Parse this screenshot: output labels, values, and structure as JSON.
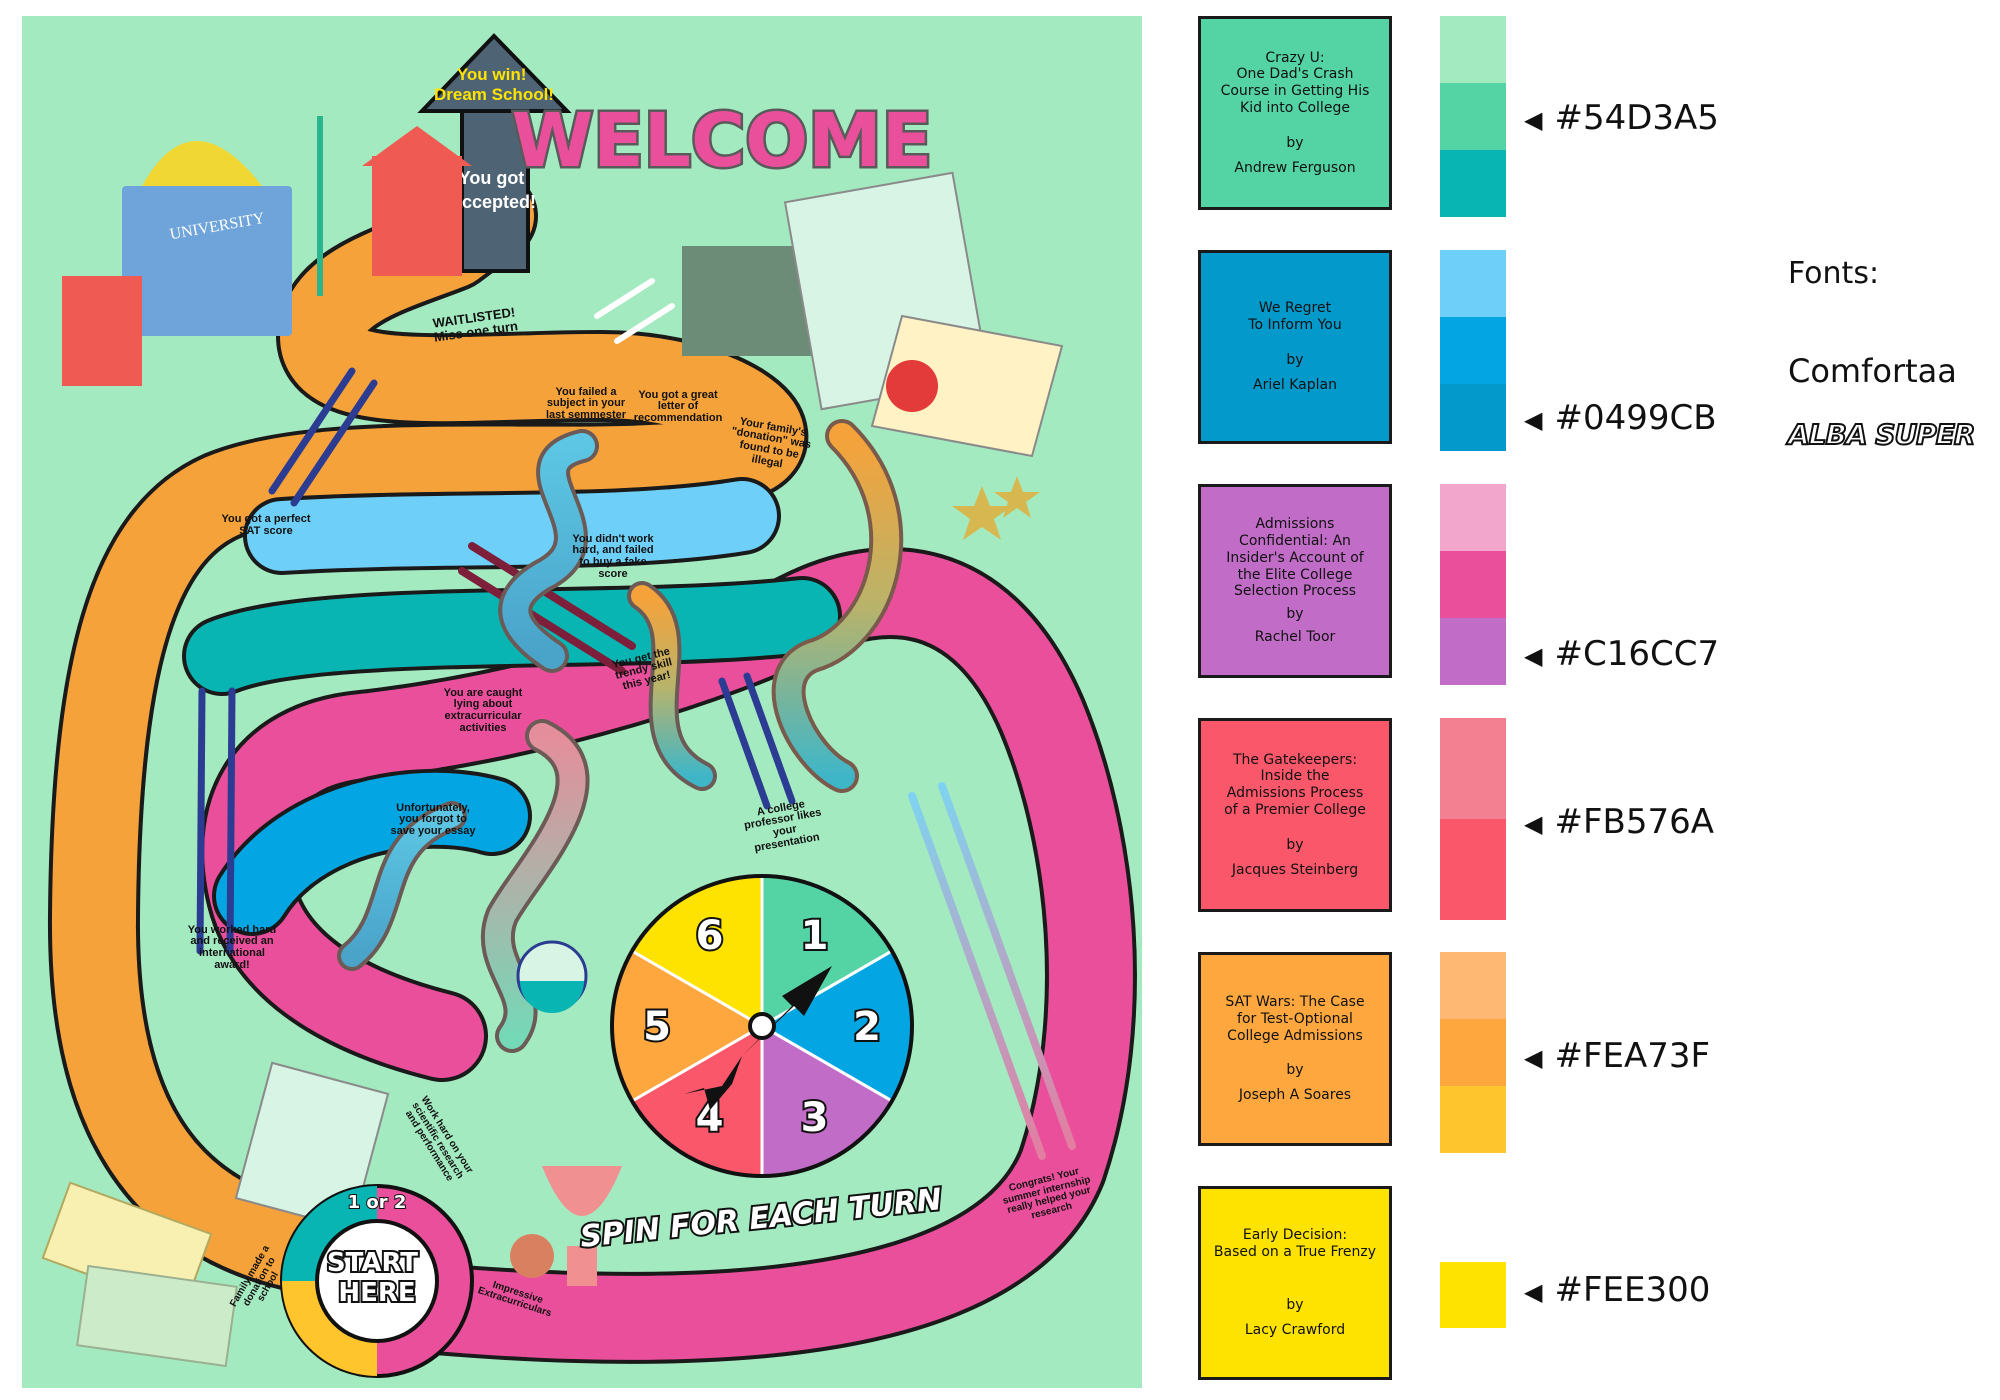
{
  "board": {
    "background": "#A3EAC0",
    "welcome": "WELCOME",
    "university_label": "UNIVERSITY",
    "goal_win": "You win!\nDream School!",
    "goal_accepted": "You got\naccepted!",
    "start_label": "START\nHERE",
    "start_ring": "1 or 2",
    "spin_label": "SPIN FOR EACH TURN",
    "spinner_numbers": [
      "1",
      "2",
      "3",
      "4",
      "5",
      "6"
    ],
    "tiles": [
      "WAITLISTED!\nMiss one turn",
      "You failed\na subject in your\nlast semmester",
      "You got a great\nletter of\nrecommendation",
      "Your family's\n\"donation\" was\nfound to be\nillegal",
      "You got a perfect\nSAT score",
      "You didn't\nwork hard, and\nfailed to buy a\nfake score",
      "You get the\ntrendy skill\nthis year!",
      "You are caught\nlying about\nextracurricular\nactivities",
      "Unfortunately,\nyou forgot to\nsave your essay",
      "A college\nprofessor likes\nyour\npresentation",
      "You worked hard\nand received an\ninternational\naward!",
      "Work hard on your\nscientific research\nand performance",
      "Congrats! Your\nsummer internship\nreally helped your\nresearch",
      "Family made a\ndonation to school",
      "Impressive\nExtracurriculars"
    ]
  },
  "books": [
    {
      "title": "Crazy U:\nOne Dad's Crash\nCourse in Getting His\nKid into College",
      "by": "by",
      "author": "Andrew Ferguson",
      "bg": "#54D3A5"
    },
    {
      "title": "We Regret\nTo Inform You",
      "by": "by",
      "author": "Ariel Kaplan",
      "bg": "#0499CB"
    },
    {
      "title": "Admissions\nConfidential: An\nInsider's Account of\nthe Elite College\nSelection Process",
      "by": "by",
      "author": "Rachel Toor",
      "bg": "#C16CC7"
    },
    {
      "title": "The Gatekeepers:\nInside the\nAdmissions Process\nof a Premier College",
      "by": "by",
      "author": "Jacques Steinberg",
      "bg": "#FB576A"
    },
    {
      "title": "SAT Wars: The Case\nfor Test-Optional\nCollege Admissions",
      "by": "by",
      "author": "Joseph A Soares",
      "bg": "#FEA73F"
    },
    {
      "title": "Early Decision:\nBased on a True Frenzy",
      "by": "by",
      "author": "Lacy Crawford",
      "bg": "#FEE300"
    }
  ],
  "palettes": [
    {
      "hex": "#54D3A5",
      "swatches": [
        "#A3EAC0",
        "#54D3A5",
        "#08B5B2"
      ]
    },
    {
      "hex": "#0499CB",
      "swatches": [
        "#6ED0F8",
        "#03A6E3",
        "#0499CB"
      ]
    },
    {
      "hex": "#C16CC7",
      "swatches": [
        "#F3A6CB",
        "#EA4F9B",
        "#C16CC7"
      ]
    },
    {
      "hex": "#FB576A",
      "swatches": [
        "#F28090",
        "#FB576A"
      ]
    },
    {
      "hex": "#FEA73F",
      "swatches": [
        "#FFB874",
        "#FEA73F",
        "#FFC52C"
      ]
    },
    {
      "hex": "#FEE300",
      "swatches": [
        "#FEE300"
      ]
    }
  ],
  "fonts": {
    "label": "Fonts:",
    "font1": "Comfortaa",
    "font2": "ALBA SUPER"
  }
}
